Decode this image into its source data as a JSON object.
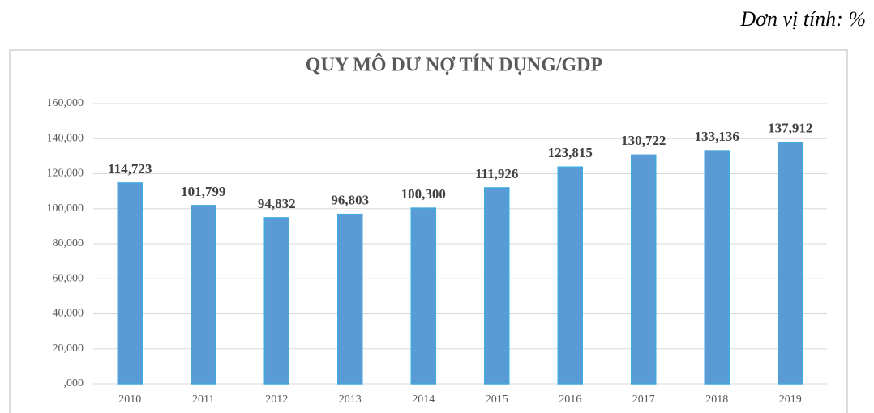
{
  "unit_note": "Đơn vị tính: %",
  "chart_data": {
    "type": "bar",
    "title": "QUY MÔ DƯ NỢ TÍN DỤNG/GDP",
    "categories": [
      "2010",
      "2011",
      "2012",
      "2013",
      "2014",
      "2015",
      "2016",
      "2017",
      "2018",
      "2019"
    ],
    "values": [
      114.723,
      101.799,
      94.832,
      96.803,
      100.3,
      111.926,
      123.815,
      130.722,
      133.136,
      137.912
    ],
    "value_labels": [
      "114,723",
      "101,799",
      "94,832",
      "96,803",
      "100,300",
      "111,926",
      "123,815",
      "130,722",
      "133,136",
      "137,912"
    ],
    "color": "#5b9bd5",
    "ylim": [
      0,
      160
    ],
    "yticks": [
      {
        "value": 0,
        "label": ",000"
      },
      {
        "value": 20,
        "label": "20,000"
      },
      {
        "value": 40,
        "label": "40,000"
      },
      {
        "value": 60,
        "label": "60,000"
      },
      {
        "value": 80,
        "label": "80,000"
      },
      {
        "value": 100,
        "label": "100,000"
      },
      {
        "value": 120,
        "label": "120,000"
      },
      {
        "value": 140,
        "label": "140,000"
      },
      {
        "value": 160,
        "label": "160,000"
      }
    ],
    "grid": true
  }
}
